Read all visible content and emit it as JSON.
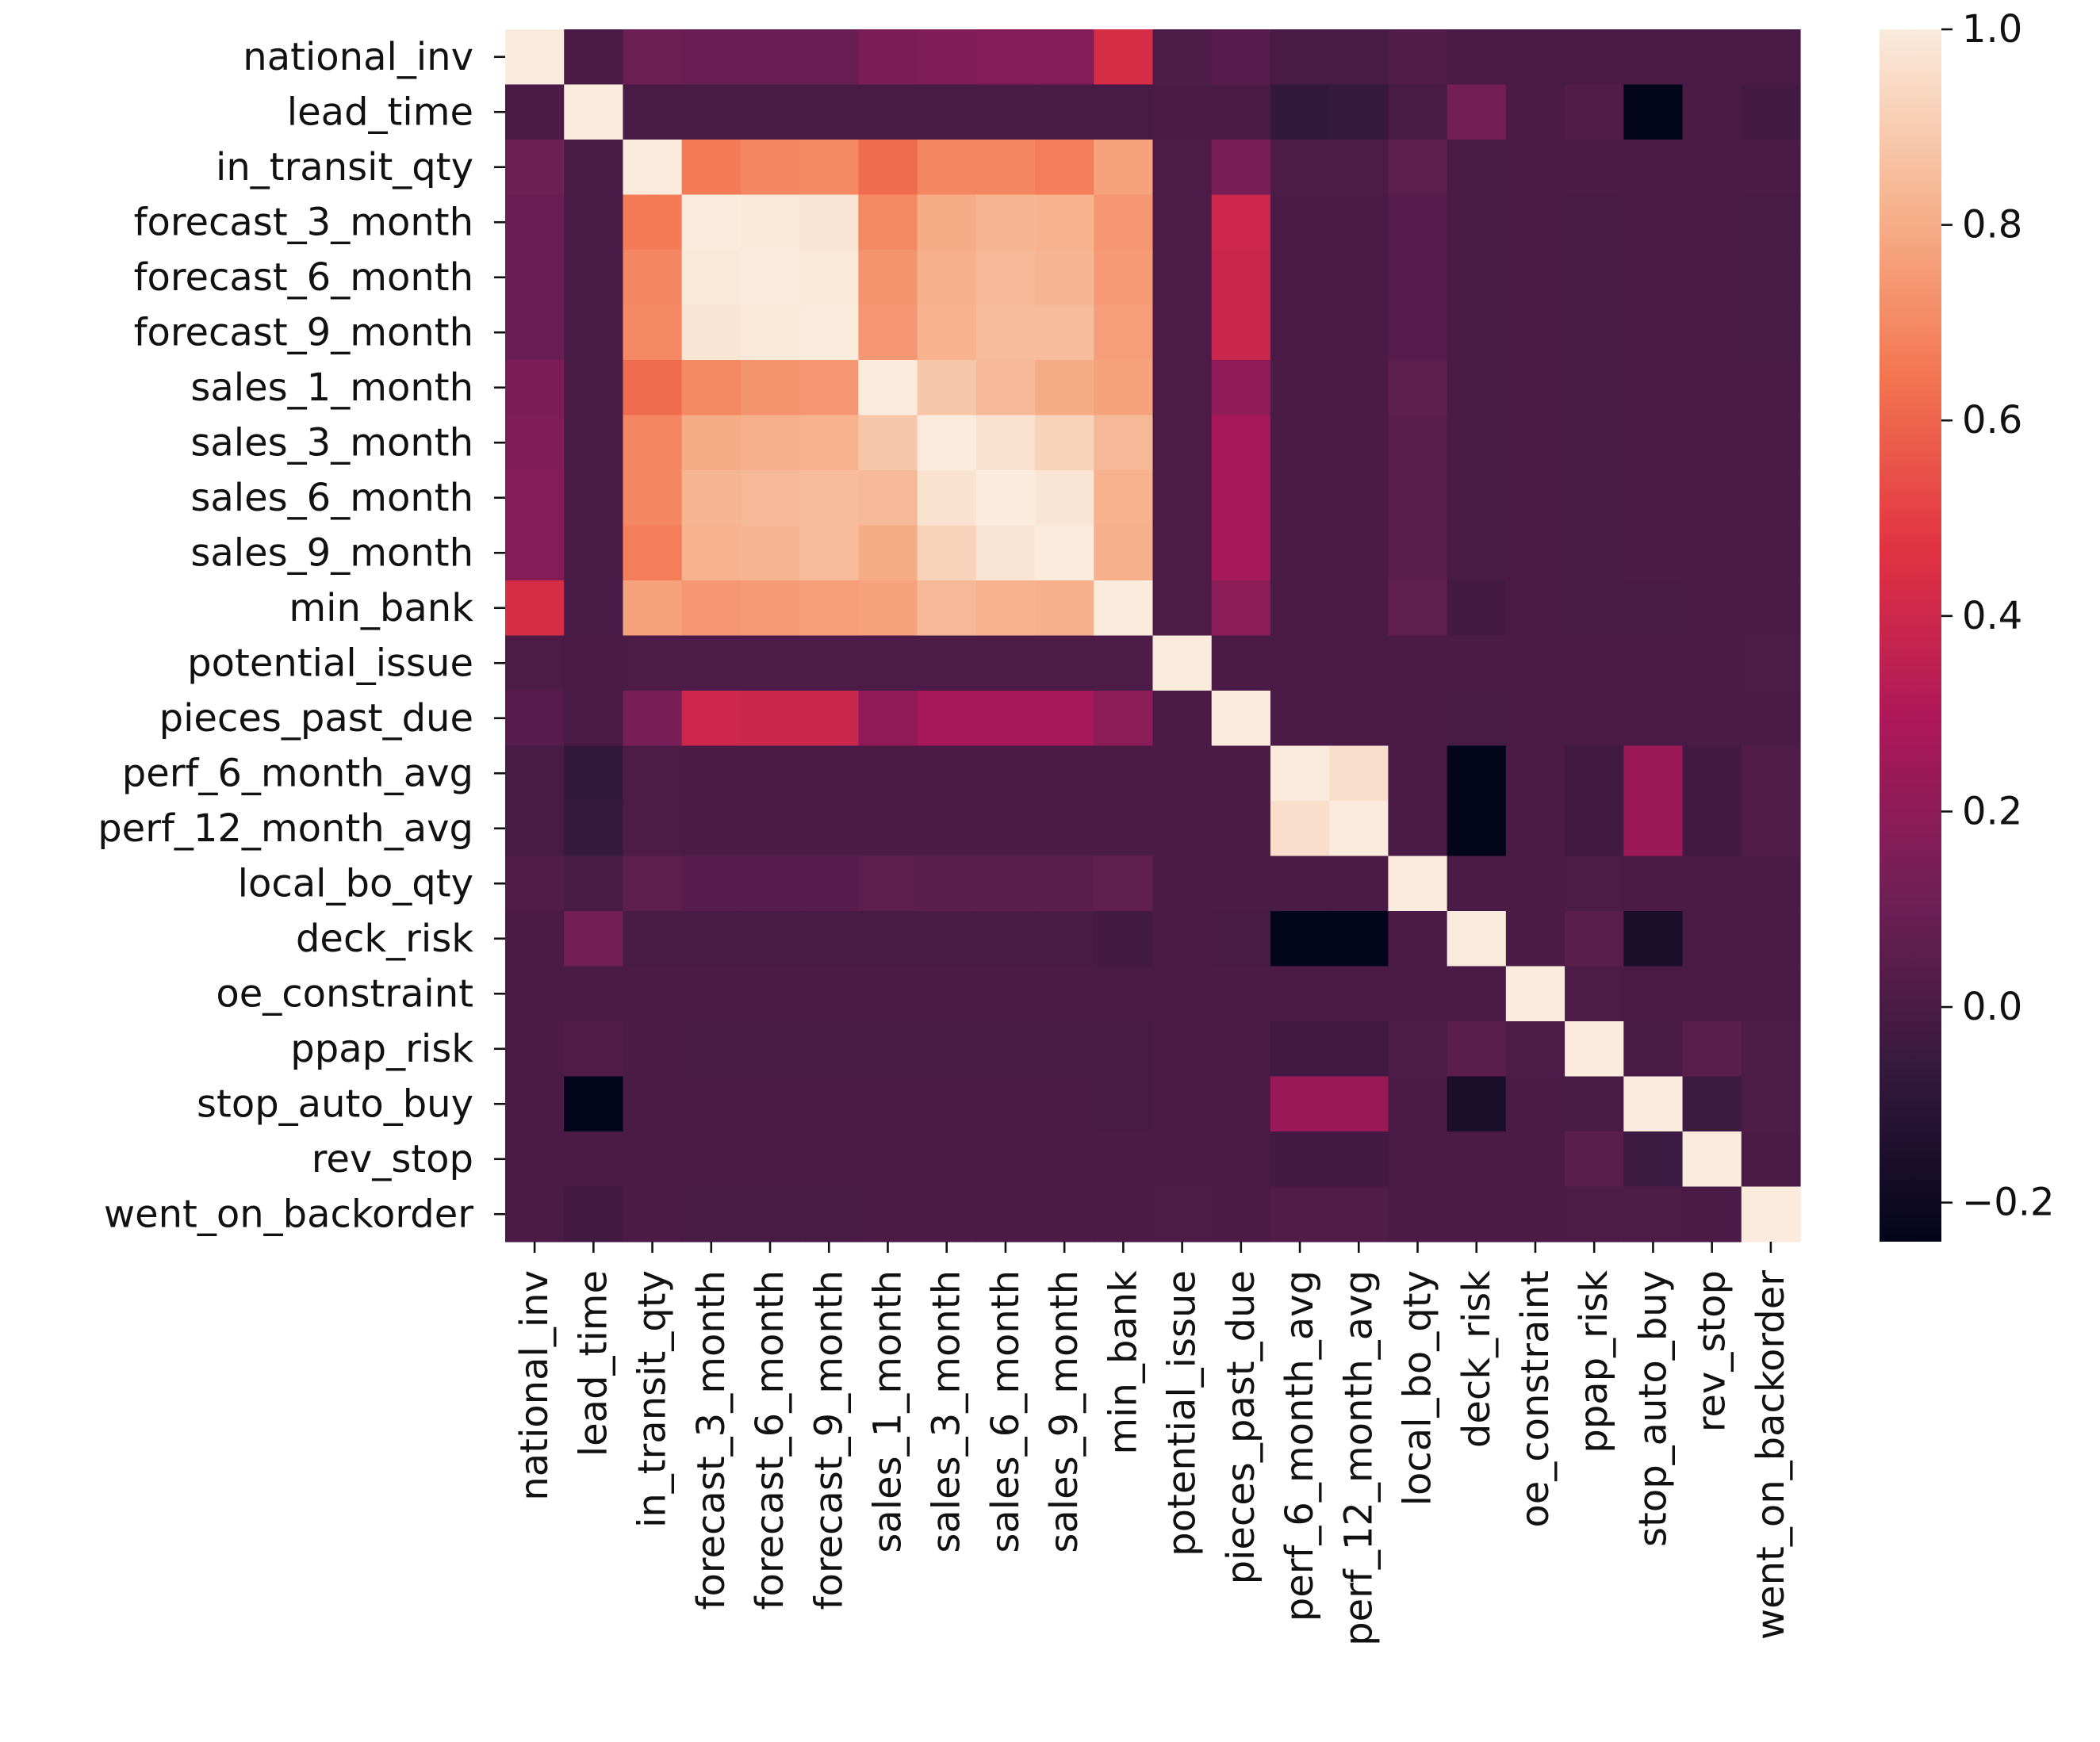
{
  "chart_data": {
    "type": "heatmap",
    "title": "",
    "xlabel": "",
    "ylabel": "",
    "labels": [
      "national_inv",
      "lead_time",
      "in_transit_qty",
      "forecast_3_month",
      "forecast_6_month",
      "forecast_9_month",
      "sales_1_month",
      "sales_3_month",
      "sales_6_month",
      "sales_9_month",
      "min_bank",
      "potential_issue",
      "pieces_past_due",
      "perf_6_month_avg",
      "perf_12_month_avg",
      "local_bo_qty",
      "deck_risk",
      "oe_constraint",
      "ppap_risk",
      "stop_auto_buy",
      "rev_stop",
      "went_on_backorder"
    ],
    "x_tick_labels": [
      "national_inv",
      "lead_time",
      "in_transit_qty",
      "forecast_3_month",
      "forecast_6_month",
      "forecast_9_month",
      "sales_1_month",
      "sales_3_month",
      "sales_6_month",
      "sales_9_month",
      "min_bank",
      "potential_issue",
      "pieces_past_due",
      "perf_6_month_avg",
      "perf_12_month_avg",
      "local_bo_qty",
      "deck_risk",
      "oe_constraint",
      "ppap_risk",
      "stop_auto_buy",
      "rev_stop",
      "went_on_backorder"
    ],
    "y_tick_labels": [
      "national_inv",
      "lead_time",
      "in_transit_qty",
      "forecast_3_month",
      "forecast_6_month",
      "forecast_9_month",
      "sales_1_month",
      "sales_3_month",
      "sales_6_month",
      "sales_9_month",
      "min_bank",
      "potential_issue",
      "pieces_past_due",
      "perf_6_month_avg",
      "perf_12_month_avg",
      "local_bo_qty",
      "deck_risk",
      "oe_constraint",
      "ppap_risk",
      "stop_auto_buy",
      "rev_stop",
      "went_on_backorder"
    ],
    "matrix": [
      [
        1.0,
        0.0,
        0.1,
        0.09,
        0.09,
        0.09,
        0.15,
        0.16,
        0.17,
        0.17,
        0.43,
        0.01,
        0.04,
        -0.01,
        -0.01,
        0.02,
        0.0,
        0.0,
        0.0,
        0.0,
        0.0,
        0.0
      ],
      [
        0.0,
        1.0,
        -0.01,
        -0.01,
        -0.01,
        -0.01,
        -0.01,
        -0.01,
        -0.01,
        -0.01,
        -0.01,
        0.0,
        0.0,
        -0.07,
        -0.06,
        -0.01,
        0.12,
        0.0,
        0.02,
        -0.24,
        0.0,
        -0.02
      ],
      [
        0.1,
        -0.01,
        1.0,
        0.66,
        0.69,
        0.7,
        0.62,
        0.69,
        0.69,
        0.67,
        0.77,
        0.01,
        0.14,
        0.01,
        0.01,
        0.06,
        -0.01,
        0.0,
        0.0,
        0.0,
        0.0,
        0.0
      ],
      [
        0.09,
        -0.01,
        0.66,
        1.0,
        0.99,
        0.98,
        0.7,
        0.8,
        0.83,
        0.82,
        0.74,
        0.01,
        0.4,
        0.0,
        0.0,
        0.04,
        -0.01,
        0.0,
        -0.01,
        0.0,
        0.0,
        -0.01
      ],
      [
        0.09,
        -0.01,
        0.69,
        0.99,
        1.0,
        0.99,
        0.73,
        0.81,
        0.84,
        0.83,
        0.75,
        0.01,
        0.39,
        0.0,
        0.0,
        0.04,
        -0.01,
        0.0,
        -0.01,
        0.0,
        0.0,
        -0.01
      ],
      [
        0.09,
        -0.01,
        0.7,
        0.98,
        0.99,
        1.0,
        0.74,
        0.82,
        0.85,
        0.85,
        0.76,
        0.01,
        0.39,
        0.0,
        0.0,
        0.04,
        -0.01,
        0.0,
        -0.01,
        0.0,
        0.0,
        -0.01
      ],
      [
        0.15,
        -0.01,
        0.62,
        0.7,
        0.73,
        0.74,
        1.0,
        0.88,
        0.84,
        0.8,
        0.77,
        0.01,
        0.21,
        0.0,
        0.0,
        0.06,
        -0.01,
        0.0,
        -0.01,
        0.0,
        0.0,
        0.0
      ],
      [
        0.16,
        -0.01,
        0.69,
        0.8,
        0.81,
        0.82,
        0.88,
        1.0,
        0.97,
        0.92,
        0.84,
        0.01,
        0.27,
        0.0,
        0.0,
        0.05,
        -0.01,
        0.0,
        -0.01,
        0.0,
        0.0,
        0.0
      ],
      [
        0.17,
        -0.01,
        0.69,
        0.83,
        0.84,
        0.85,
        0.84,
        0.97,
        1.0,
        0.98,
        0.82,
        0.01,
        0.27,
        0.0,
        0.0,
        0.05,
        -0.01,
        0.0,
        -0.01,
        0.0,
        0.0,
        0.0
      ],
      [
        0.17,
        -0.01,
        0.67,
        0.82,
        0.83,
        0.85,
        0.8,
        0.92,
        0.98,
        1.0,
        0.81,
        0.01,
        0.27,
        0.0,
        0.0,
        0.05,
        -0.01,
        0.0,
        -0.01,
        0.0,
        0.0,
        0.0
      ],
      [
        0.43,
        -0.01,
        0.77,
        0.74,
        0.75,
        0.76,
        0.77,
        0.84,
        0.82,
        0.81,
        1.0,
        0.01,
        0.19,
        0.0,
        0.0,
        0.07,
        -0.02,
        0.0,
        -0.01,
        -0.01,
        0.0,
        0.0
      ],
      [
        0.01,
        0.0,
        0.01,
        0.01,
        0.01,
        0.01,
        0.01,
        0.01,
        0.01,
        0.01,
        0.01,
        1.0,
        0.0,
        0.0,
        0.0,
        0.0,
        0.0,
        0.0,
        0.0,
        0.0,
        0.0,
        0.01
      ],
      [
        0.04,
        0.0,
        0.14,
        0.4,
        0.39,
        0.39,
        0.21,
        0.27,
        0.27,
        0.27,
        0.19,
        0.0,
        1.0,
        0.0,
        0.0,
        0.0,
        -0.01,
        0.0,
        0.0,
        0.0,
        0.0,
        0.0
      ],
      [
        -0.01,
        -0.07,
        0.01,
        0.0,
        0.0,
        0.0,
        0.0,
        0.0,
        0.0,
        0.0,
        0.0,
        0.0,
        0.0,
        1.0,
        0.96,
        0.0,
        -0.24,
        0.0,
        -0.03,
        0.24,
        -0.02,
        0.02
      ],
      [
        -0.01,
        -0.06,
        0.01,
        0.0,
        0.0,
        0.0,
        0.0,
        0.0,
        0.0,
        0.0,
        0.0,
        0.0,
        0.0,
        0.96,
        1.0,
        0.0,
        -0.24,
        0.0,
        -0.03,
        0.24,
        -0.02,
        0.02
      ],
      [
        0.02,
        -0.01,
        0.06,
        0.04,
        0.04,
        0.04,
        0.06,
        0.05,
        0.05,
        0.05,
        0.07,
        0.0,
        0.0,
        0.0,
        0.0,
        1.0,
        0.0,
        0.0,
        0.01,
        0.0,
        0.0,
        0.0
      ],
      [
        0.0,
        0.12,
        -0.01,
        -0.01,
        -0.01,
        -0.01,
        -0.01,
        -0.01,
        -0.01,
        -0.01,
        -0.02,
        0.0,
        -0.01,
        -0.24,
        -0.24,
        0.0,
        1.0,
        0.0,
        0.05,
        -0.16,
        0.0,
        0.0
      ],
      [
        0.0,
        0.0,
        0.0,
        0.0,
        0.0,
        0.0,
        0.0,
        0.0,
        0.0,
        0.0,
        0.0,
        0.0,
        0.0,
        0.0,
        0.0,
        0.0,
        0.0,
        1.0,
        0.01,
        0.0,
        0.0,
        0.0
      ],
      [
        0.0,
        0.02,
        0.0,
        -0.01,
        -0.01,
        -0.01,
        -0.01,
        -0.01,
        -0.01,
        -0.01,
        -0.01,
        0.0,
        0.0,
        -0.03,
        -0.03,
        0.01,
        0.05,
        0.01,
        1.0,
        -0.01,
        0.05,
        0.01
      ],
      [
        0.0,
        -0.24,
        0.0,
        0.0,
        0.0,
        0.0,
        0.0,
        0.0,
        0.0,
        0.0,
        -0.01,
        0.0,
        0.0,
        0.24,
        0.24,
        0.0,
        -0.16,
        0.0,
        -0.01,
        1.0,
        -0.04,
        0.01
      ],
      [
        0.0,
        0.0,
        0.0,
        0.0,
        0.0,
        0.0,
        0.0,
        0.0,
        0.0,
        0.0,
        0.0,
        0.0,
        0.0,
        -0.02,
        -0.02,
        0.0,
        0.0,
        0.0,
        0.05,
        -0.04,
        1.0,
        0.0
      ],
      [
        0.0,
        -0.02,
        0.0,
        -0.01,
        -0.01,
        -0.01,
        0.0,
        0.0,
        0.0,
        0.0,
        0.0,
        0.01,
        0.0,
        0.02,
        0.02,
        0.0,
        0.0,
        0.0,
        0.01,
        0.01,
        0.0,
        1.0
      ]
    ],
    "colorbar": {
      "min": -0.24,
      "max": 1.0,
      "tick_values": [
        1.0,
        0.8,
        0.6,
        0.4,
        0.2,
        0.0,
        -0.2
      ],
      "tick_labels": [
        "1.0",
        "0.8",
        "0.6",
        "0.4",
        "0.2",
        "0.0",
        "−0.2"
      ],
      "colormap": "rocket",
      "colormap_stops": [
        "#03051a",
        "#35193e",
        "#701f57",
        "#ad1759",
        "#e13342",
        "#f37651",
        "#f6b48f",
        "#faebdd"
      ]
    },
    "grid": false,
    "legend": "colorbar-right"
  }
}
